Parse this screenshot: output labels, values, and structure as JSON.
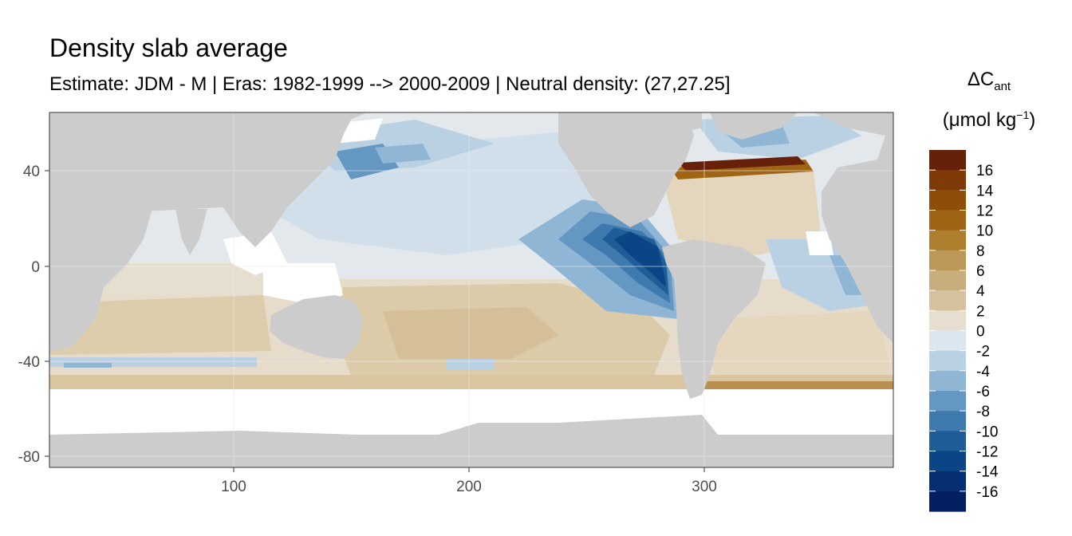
{
  "title": "Density slab average",
  "subtitle": "Estimate: JDM - M | Eras: 1982-1999 --> 2000-2009 | Neutral density: (27,27.25]",
  "legend": {
    "symbol": "ΔC",
    "subscript": "ant",
    "unit_prefix": "(μmol kg",
    "unit_sup": "−1",
    "unit_suffix": ")",
    "labels": [
      "16",
      "14",
      "12",
      "10",
      "8",
      "6",
      "4",
      "2",
      "0",
      "-2",
      "-4",
      "-6",
      "-8",
      "-10",
      "-12",
      "-14",
      "-16"
    ],
    "colors": [
      "#67200a",
      "#7f3a07",
      "#8f4d0a",
      "#9f6414",
      "#ad7f2f",
      "#bb9758",
      "#c8ad7d",
      "#d6c19e",
      "#e6dfcf",
      "#dce6ee",
      "#b9d1e3",
      "#8fb6d5",
      "#6497c1",
      "#3f7aae",
      "#1f5d98",
      "#0b4585",
      "#062f73",
      "#021f62"
    ]
  },
  "axes": {
    "x_ticks": [
      "100",
      "200",
      "300"
    ],
    "y_ticks": [
      "40",
      "0",
      "-40",
      "-80"
    ]
  },
  "colors": {
    "land": "#cccccc",
    "nodata": "#ffffff",
    "panel_border": "#333333",
    "grid": "#ebebeb"
  }
}
